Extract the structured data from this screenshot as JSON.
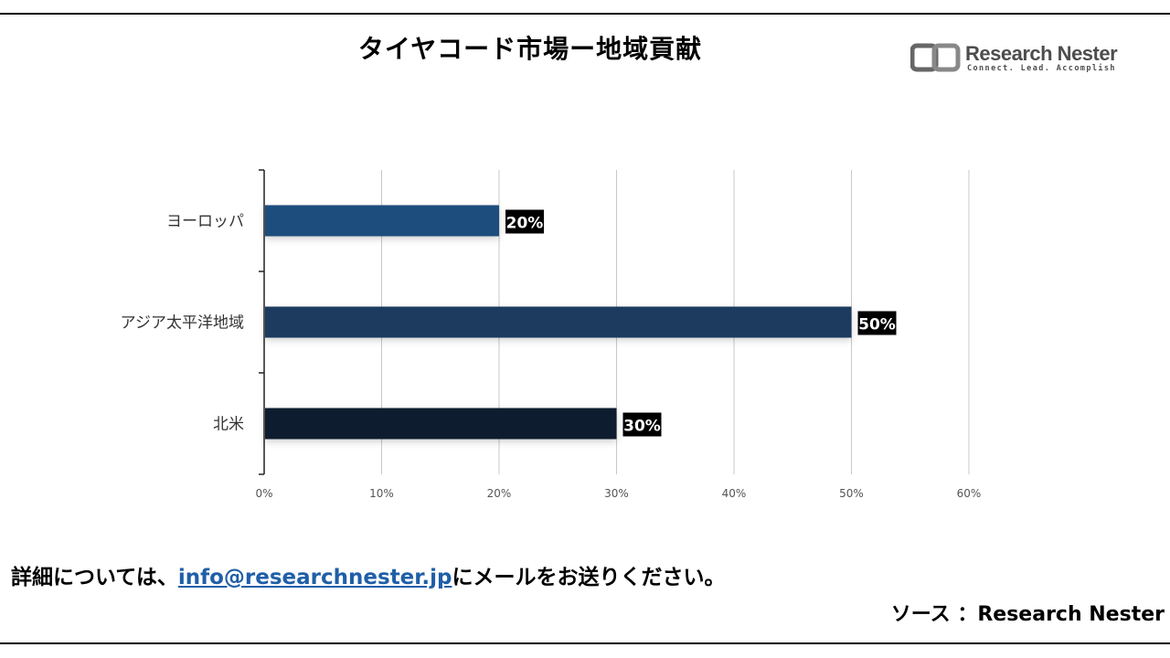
{
  "title": "タイヤコード市場ー地域貢献",
  "logo": {
    "name": "Research Nester",
    "tagline": "Connect. Lead. Accomplish"
  },
  "footer": {
    "prefix": "詳細については、",
    "email": "info@researchnester.jp",
    "suffix": "にメールをお送りください。"
  },
  "source": "ソース ：Research Nester",
  "colors": {
    "europe": "#1f4e7c",
    "asia_pacific": "#1a3a5e",
    "north_america": "#0f1e2e",
    "label_bg": "#000000",
    "grid": "#c8c8c8"
  },
  "chart_data": {
    "type": "bar",
    "orientation": "horizontal",
    "categories": [
      "ヨーロッパ",
      "アジア太平洋地域",
      "北米"
    ],
    "values": [
      20,
      50,
      30
    ],
    "data_labels": [
      "20%",
      "50%",
      "30%"
    ],
    "xlim": [
      0,
      60
    ],
    "xticks": [
      "0%",
      "10%",
      "20%",
      "30%",
      "40%",
      "50%",
      "60%"
    ],
    "grid": "vertical",
    "legend": "none"
  }
}
